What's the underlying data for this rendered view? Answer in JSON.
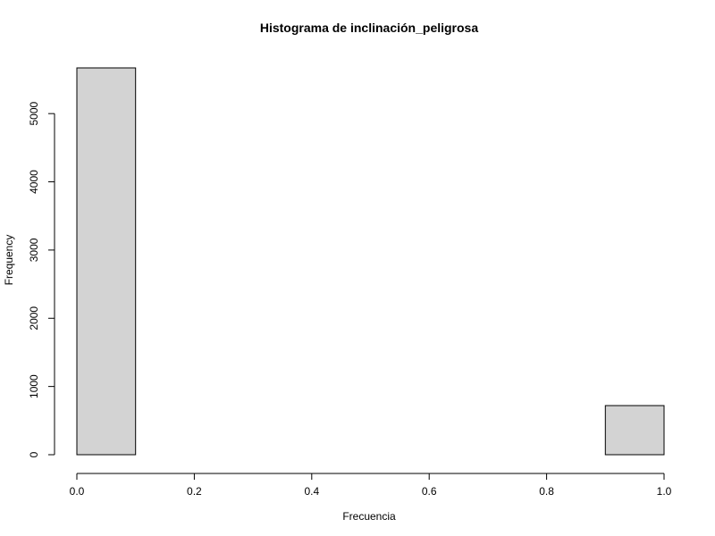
{
  "chart_data": {
    "type": "bar",
    "title": "Histograma de inclinación_peligrosa",
    "xlabel": "Frecuencia",
    "ylabel": "Frequency",
    "bins": [
      {
        "start": 0.0,
        "end": 0.1,
        "count": 5670
      },
      {
        "start": 0.1,
        "end": 0.2,
        "count": 0
      },
      {
        "start": 0.2,
        "end": 0.3,
        "count": 0
      },
      {
        "start": 0.3,
        "end": 0.4,
        "count": 0
      },
      {
        "start": 0.4,
        "end": 0.5,
        "count": 0
      },
      {
        "start": 0.5,
        "end": 0.6,
        "count": 0
      },
      {
        "start": 0.6,
        "end": 0.7,
        "count": 0
      },
      {
        "start": 0.7,
        "end": 0.8,
        "count": 0
      },
      {
        "start": 0.8,
        "end": 0.9,
        "count": 0
      },
      {
        "start": 0.9,
        "end": 1.0,
        "count": 720
      }
    ],
    "xlim": [
      0,
      1
    ],
    "ylim": [
      0,
      5670
    ],
    "x_ticks": [
      0.0,
      0.2,
      0.4,
      0.6,
      0.8,
      1.0
    ],
    "x_tick_labels": [
      "0.0",
      "0.2",
      "0.4",
      "0.6",
      "0.8",
      "1.0"
    ],
    "y_ticks": [
      0,
      1000,
      2000,
      3000,
      4000,
      5000
    ],
    "y_tick_labels": [
      "0",
      "1000",
      "2000",
      "3000",
      "4000",
      "5000"
    ],
    "bar_color": "#d3d3d3",
    "grid": false,
    "legend": "none"
  }
}
